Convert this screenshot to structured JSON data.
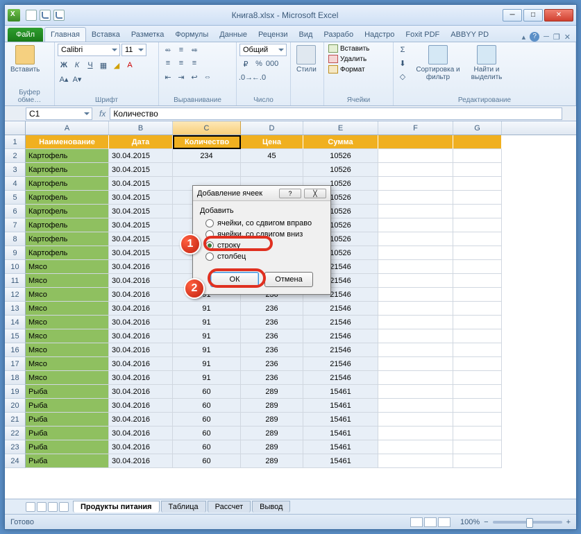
{
  "title": "Книга8.xlsx - Microsoft Excel",
  "ribbon": {
    "file": "Файл",
    "tabs": [
      "Главная",
      "Вставка",
      "Разметка",
      "Формулы",
      "Данные",
      "Рецензи",
      "Вид",
      "Разрабо",
      "Надстро",
      "Foxit PDF",
      "ABBYY PD"
    ],
    "active_tab": 0,
    "groups": {
      "clipboard": {
        "label": "Буфер обме…",
        "paste": "Вставить"
      },
      "font": {
        "label": "Шрифт",
        "name": "Calibri",
        "size": "11"
      },
      "align": {
        "label": "Выравнивание"
      },
      "number": {
        "label": "Число",
        "format": "Общий"
      },
      "styles": {
        "label": "",
        "btn": "Стили"
      },
      "cells": {
        "label": "Ячейки",
        "insert": "Вставить",
        "delete": "Удалить",
        "format": "Формат"
      },
      "editing": {
        "label": "Редактирование",
        "sort": "Сортировка и фильтр",
        "find": "Найти и выделить"
      }
    }
  },
  "formula_bar": {
    "name_box": "C1",
    "fx": "fx",
    "value": "Количество"
  },
  "columns": [
    "A",
    "B",
    "C",
    "D",
    "E",
    "F",
    "G"
  ],
  "col_widths": [
    "colA",
    "colB",
    "colC",
    "colD",
    "colE",
    "colF",
    "colG"
  ],
  "selected_col": 2,
  "headers": [
    "Наименование",
    "Дата",
    "Количество",
    "Цена",
    "Сумма"
  ],
  "data_rows": [
    [
      "Картофель",
      "30.04.2015",
      "234",
      "45",
      "10526"
    ],
    [
      "Картофель",
      "30.04.2015",
      "",
      "",
      "10526"
    ],
    [
      "Картофель",
      "30.04.2015",
      "",
      "",
      "10526"
    ],
    [
      "Картофель",
      "30.04.2015",
      "",
      "",
      "10526"
    ],
    [
      "Картофель",
      "30.04.2015",
      "",
      "",
      "10526"
    ],
    [
      "Картофель",
      "30.04.2015",
      "",
      "",
      "10526"
    ],
    [
      "Картофель",
      "30.04.2015",
      "",
      "",
      "10526"
    ],
    [
      "Картофель",
      "30.04.2015",
      "",
      "",
      "10526"
    ],
    [
      "Мясо",
      "30.04.2016",
      "",
      "",
      "21546"
    ],
    [
      "Мясо",
      "30.04.2016",
      "",
      "",
      "21546"
    ],
    [
      "Мясо",
      "30.04.2016",
      "91",
      "236",
      "21546"
    ],
    [
      "Мясо",
      "30.04.2016",
      "91",
      "236",
      "21546"
    ],
    [
      "Мясо",
      "30.04.2016",
      "91",
      "236",
      "21546"
    ],
    [
      "Мясо",
      "30.04.2016",
      "91",
      "236",
      "21546"
    ],
    [
      "Мясо",
      "30.04.2016",
      "91",
      "236",
      "21546"
    ],
    [
      "Мясо",
      "30.04.2016",
      "91",
      "236",
      "21546"
    ],
    [
      "Мясо",
      "30.04.2016",
      "91",
      "236",
      "21546"
    ],
    [
      "Рыба",
      "30.04.2016",
      "60",
      "289",
      "15461"
    ],
    [
      "Рыба",
      "30.04.2016",
      "60",
      "289",
      "15461"
    ],
    [
      "Рыба",
      "30.04.2016",
      "60",
      "289",
      "15461"
    ],
    [
      "Рыба",
      "30.04.2016",
      "60",
      "289",
      "15461"
    ],
    [
      "Рыба",
      "30.04.2016",
      "60",
      "289",
      "15461"
    ],
    [
      "Рыба",
      "30.04.2016",
      "60",
      "289",
      "15461"
    ]
  ],
  "sheet_tabs": {
    "active": "Продукты питания",
    "others": [
      "Таблица",
      "Рассчет",
      "Вывод"
    ]
  },
  "status": {
    "ready": "Готово",
    "zoom": "100%",
    "minus": "−",
    "plus": "+"
  },
  "dialog": {
    "title": "Добавление ячеек",
    "group": "Добавить",
    "opts": [
      "ячейки, со сдвигом вправо",
      "ячейки, со сдвигом вниз",
      "строку",
      "столбец"
    ],
    "selected": 2,
    "ok": "ОК",
    "cancel": "Отмена",
    "help": "?",
    "close": "╳"
  },
  "badges": {
    "b1": "1",
    "b2": "2"
  }
}
